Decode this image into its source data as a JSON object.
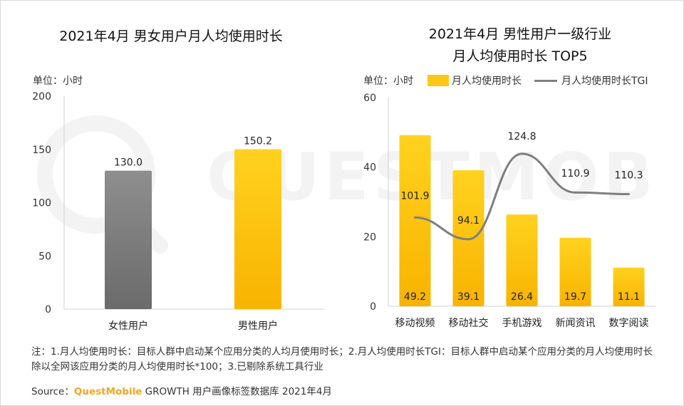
{
  "left_chart": {
    "title": "2021年4月 男女用户月人均使用时长",
    "unit_label": "单位：小时"
  },
  "right_chart": {
    "title_line1": "2021年4月 男性用户一级行业",
    "title_line2": "月人均使用时长 TOP5",
    "unit_label": "单位：小时",
    "legend_bar": "月人均使用时长",
    "legend_line": "月人均使用时长TGI"
  },
  "footer": {
    "note": "注：1.月人均使用时长：目标人群中启动某个应用分类的人均月使用时长；2.月人均使用时长TGI：目标人群中启动某个应用分类的月人均使用时长除以全网该应用分类的月人均使用时长*100；3.已剔除系统工具行业",
    "source_prefix": "Source：",
    "source_brand": "QuestMobile",
    "source_rest": " GROWTH 用户画像标签数据库 2021年4月"
  },
  "watermark": {
    "text": "QUESTMOBILE"
  },
  "colors": {
    "bar_yellow": "#ffc61a",
    "bar_gray": "#7d7d7d",
    "line_gray": "#7f7f7f",
    "axis": "#d0d0d0"
  },
  "chart_data": [
    {
      "type": "bar",
      "title": "2021年4月 男女用户月人均使用时长",
      "ylabel": "单位：小时",
      "ylim": [
        0,
        200
      ],
      "yticks": [
        0,
        50,
        100,
        150,
        200
      ],
      "categories": [
        "女性用户",
        "男性用户"
      ],
      "values": [
        130.0,
        150.2
      ],
      "labels": [
        "130.0",
        "150.2"
      ]
    },
    {
      "type": "bar",
      "title": "2021年4月 男性用户一级行业 月人均使用时长 TOP5",
      "ylabel": "单位：小时",
      "ylim": [
        0,
        60
      ],
      "yticks": [
        0,
        20,
        40,
        60
      ],
      "categories": [
        "移动视频",
        "移动社交",
        "手机游戏",
        "新闻资讯",
        "数字阅读"
      ],
      "series": [
        {
          "name": "月人均使用时长",
          "type": "bar",
          "values": [
            49.2,
            39.1,
            26.4,
            19.7,
            11.1
          ],
          "labels": [
            "49.2",
            "39.1",
            "26.4",
            "19.7",
            "11.1"
          ]
        },
        {
          "name": "月人均使用时长TGI",
          "type": "line",
          "values": [
            101.9,
            94.1,
            124.8,
            110.9,
            110.3
          ],
          "labels": [
            "101.9",
            "94.1",
            "124.8",
            "110.9",
            "110.3"
          ]
        }
      ]
    }
  ]
}
